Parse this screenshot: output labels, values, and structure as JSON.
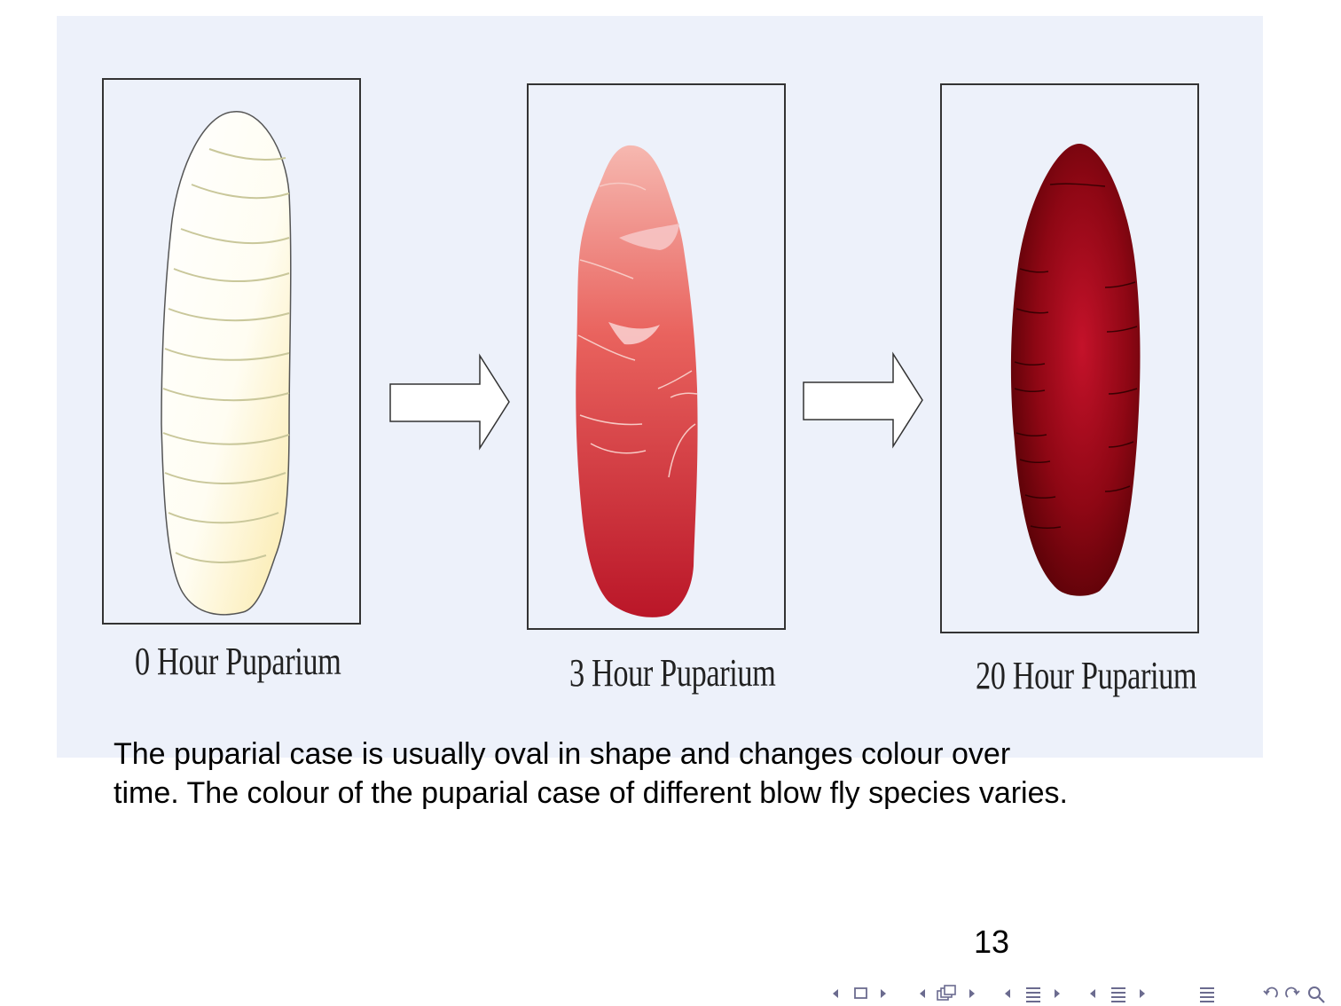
{
  "figure": {
    "stages": [
      {
        "label": "0 Hour Puparium",
        "color_top": "#fffdf2",
        "color_bottom": "#fdf0b8"
      },
      {
        "label": "3 Hour Puparium",
        "color_top": "#f4b0aa",
        "color_bottom": "#bf1a2e"
      },
      {
        "label": "20 Hour Puparium",
        "color_top": "#c0142a",
        "color_bottom": "#5e0208"
      }
    ],
    "background_color": "#edf1fa"
  },
  "caption": {
    "line1": "The puparial case is usually oval in shape and changes colour over",
    "line2": "time.  The colour of the puparial case of different blow fly species varies."
  },
  "page_number": "13",
  "navigation": {
    "icons": [
      "nav-prev-frame-icon",
      "nav-frame-icon",
      "nav-next-frame-icon",
      "nav-prev-subsection-icon",
      "nav-subsection-icon",
      "nav-next-subsection-icon",
      "nav-prev-section-icon",
      "nav-section-icon",
      "nav-next-section-icon",
      "nav-prev-slide-icon",
      "nav-slide-icon",
      "nav-next-slide-icon",
      "nav-document-icon",
      "nav-back-icon",
      "nav-forward-icon",
      "nav-search-icon"
    ]
  }
}
